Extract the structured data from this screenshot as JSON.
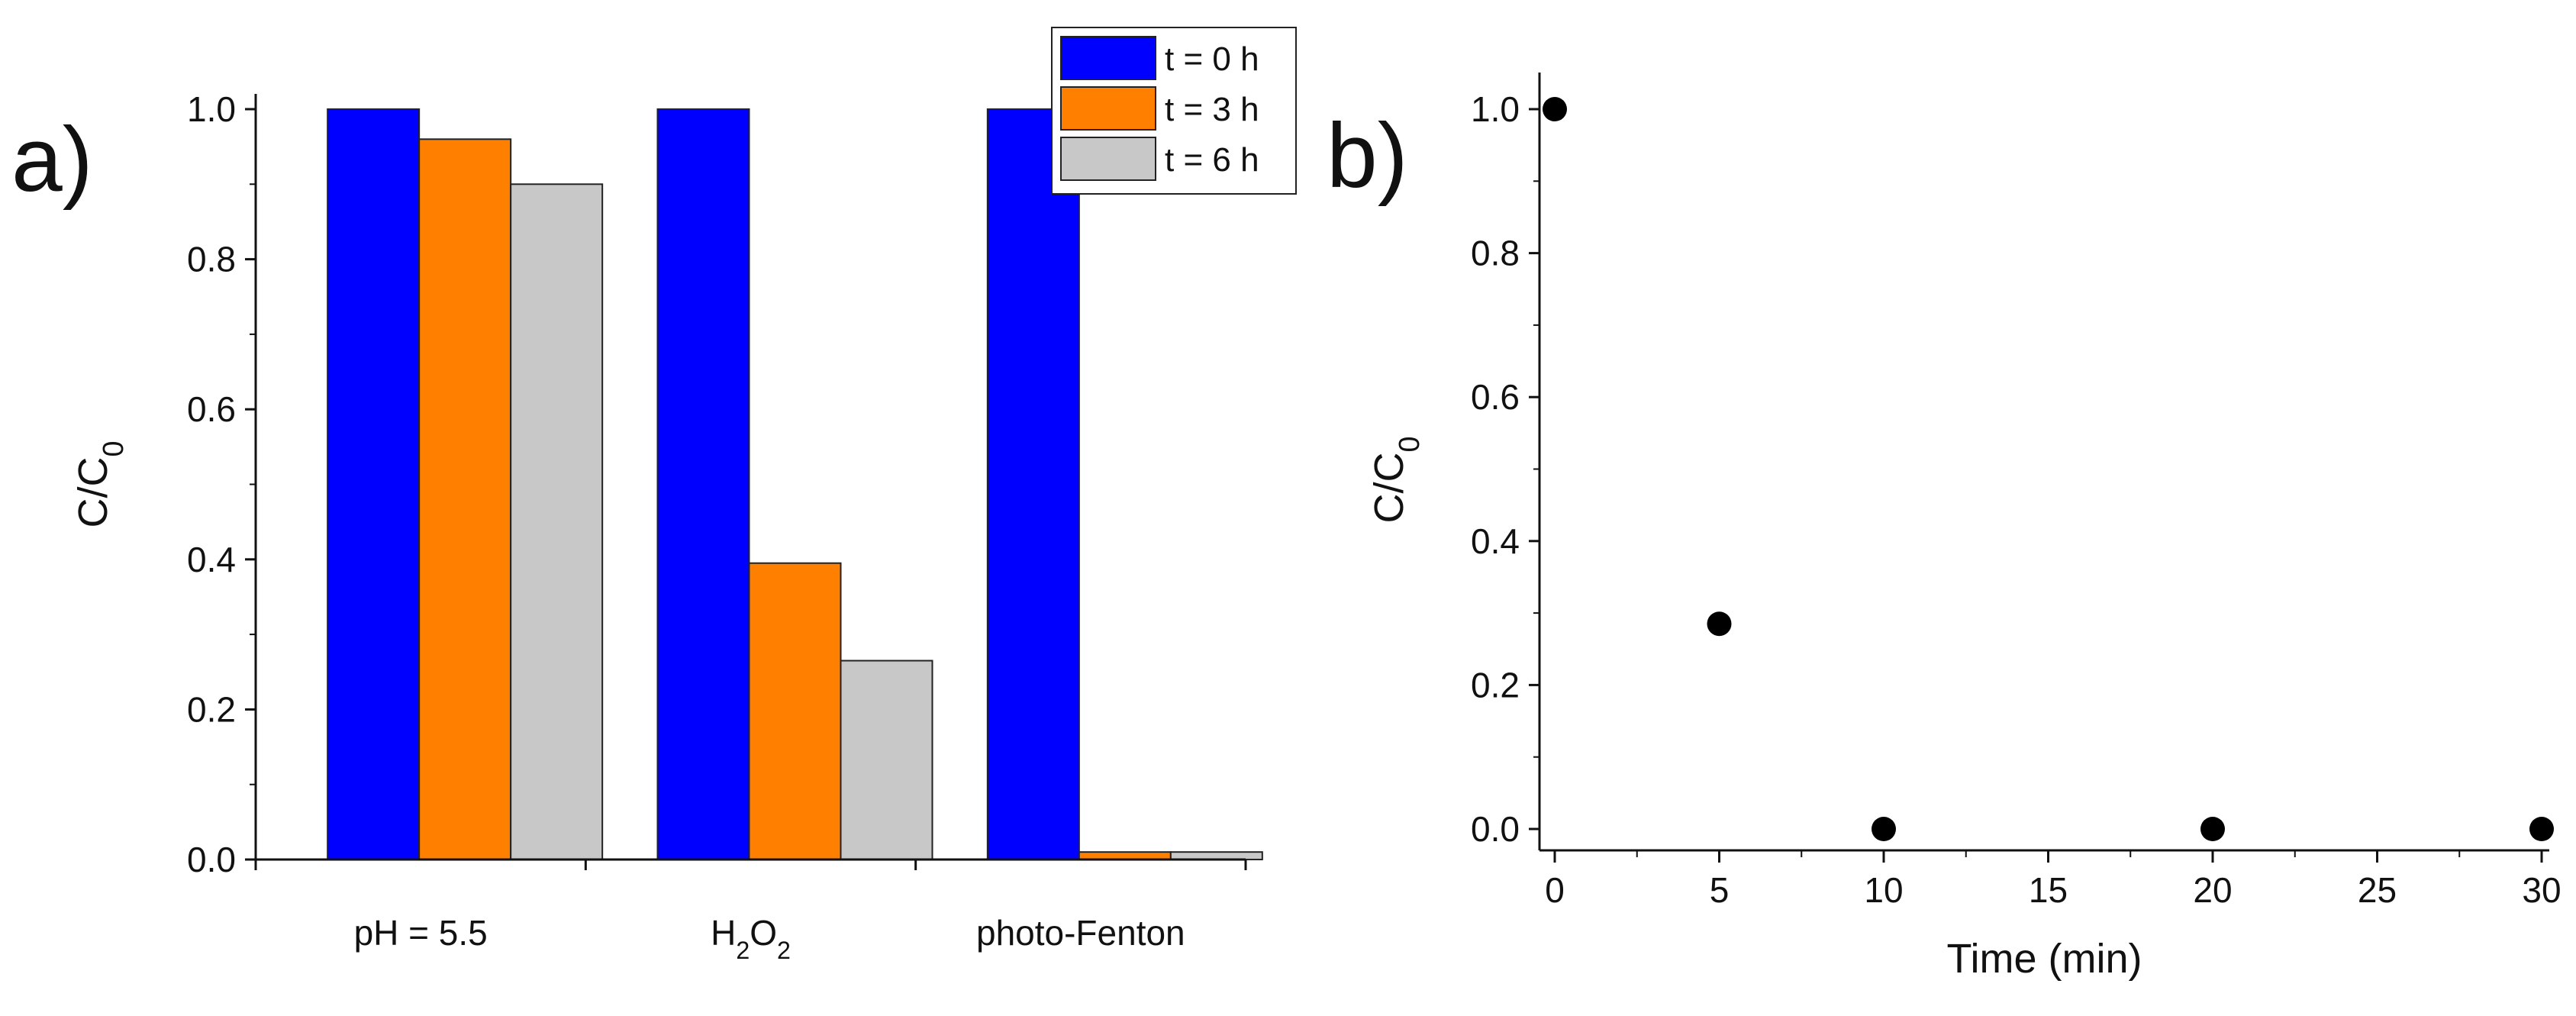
{
  "panel_a_label": "a)",
  "panel_b_label": "b)",
  "chart_data": [
    {
      "type": "bar",
      "panel": "a)",
      "categories": [
        "pH = 5.5",
        "H2O2",
        "photo-Fenton"
      ],
      "series": [
        {
          "name": "t = 0 h",
          "values": [
            1.0,
            1.0,
            1.0
          ],
          "color": "#0000ff"
        },
        {
          "name": "t = 3 h",
          "values": [
            0.96,
            0.395,
            0.01
          ],
          "color": "#ff7f00"
        },
        {
          "name": "t = 6 h",
          "values": [
            0.9,
            0.265,
            0.01
          ],
          "color": "#c8c8c8"
        }
      ],
      "ylabel": "C/C0",
      "ylim": [
        0.0,
        1.0
      ],
      "yticks": [
        "0.0",
        "0.2",
        "0.4",
        "0.6",
        "0.8",
        "1.0"
      ],
      "legend_position": "top-right",
      "grid": false
    },
    {
      "type": "scatter",
      "panel": "b)",
      "x": [
        0,
        5,
        10,
        20,
        30
      ],
      "y": [
        1.0,
        0.285,
        0.0,
        0.0,
        0.0
      ],
      "xlabel": "Time (min)",
      "ylabel": "C/C0",
      "xlim": [
        0,
        30
      ],
      "ylim": [
        0.0,
        1.0
      ],
      "xticks": [
        "0",
        "5",
        "10",
        "15",
        "20",
        "25",
        "30"
      ],
      "yticks": [
        "0.0",
        "0.2",
        "0.4",
        "0.6",
        "0.8",
        "1.0"
      ],
      "marker_color": "#000000",
      "grid": false
    }
  ]
}
